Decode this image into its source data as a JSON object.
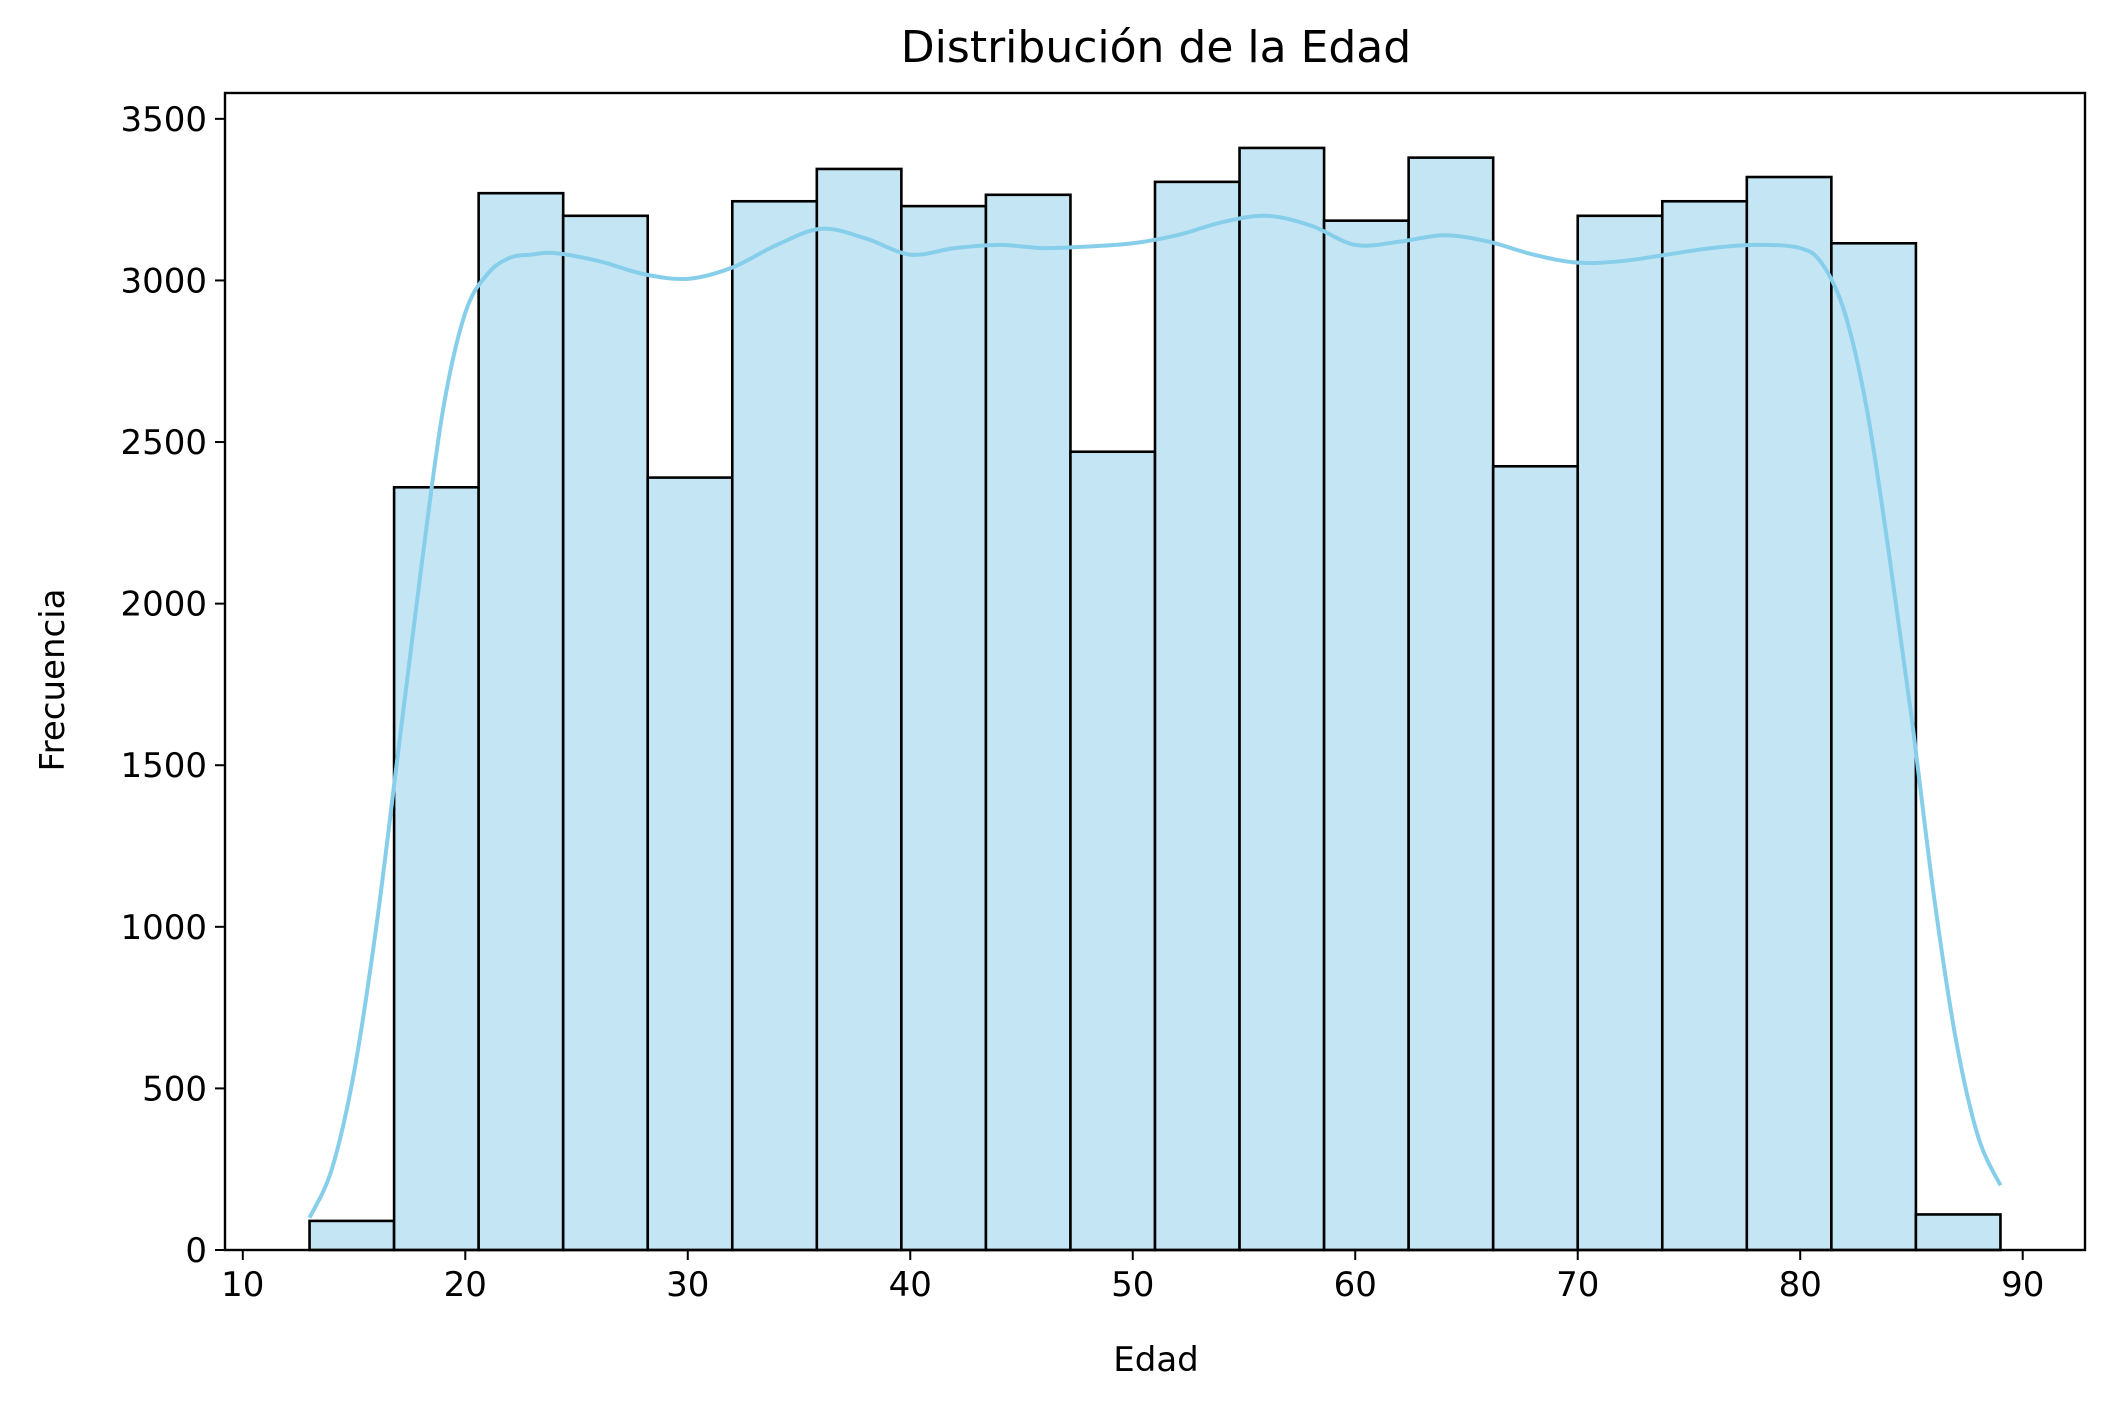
{
  "chart_data": {
    "type": "bar",
    "title": "Distribución de la Edad",
    "xlabel": "Edad",
    "ylabel": "Frecuencia",
    "xlim": [
      9.2,
      92.8
    ],
    "ylim": [
      0,
      3580
    ],
    "grid": false,
    "colors": {
      "bar_fill": "#c4e6f4",
      "bar_edge": "#000000",
      "kde_line": "#87ceeb"
    },
    "bins": [
      {
        "x0": 13.0,
        "x1": 16.8,
        "count": 90
      },
      {
        "x0": 16.8,
        "x1": 20.6,
        "count": 2360
      },
      {
        "x0": 20.6,
        "x1": 24.4,
        "count": 3270
      },
      {
        "x0": 24.4,
        "x1": 28.2,
        "count": 3200
      },
      {
        "x0": 28.2,
        "x1": 32.0,
        "count": 2390
      },
      {
        "x0": 32.0,
        "x1": 35.8,
        "count": 3245
      },
      {
        "x0": 35.8,
        "x1": 39.6,
        "count": 3345
      },
      {
        "x0": 39.6,
        "x1": 43.4,
        "count": 3230
      },
      {
        "x0": 43.4,
        "x1": 47.2,
        "count": 3265
      },
      {
        "x0": 47.2,
        "x1": 51.0,
        "count": 2470
      },
      {
        "x0": 51.0,
        "x1": 54.8,
        "count": 3305
      },
      {
        "x0": 54.8,
        "x1": 58.6,
        "count": 3410
      },
      {
        "x0": 58.6,
        "x1": 62.4,
        "count": 3185
      },
      {
        "x0": 62.4,
        "x1": 66.2,
        "count": 3380
      },
      {
        "x0": 66.2,
        "x1": 70.0,
        "count": 2425
      },
      {
        "x0": 70.0,
        "x1": 73.8,
        "count": 3200
      },
      {
        "x0": 73.8,
        "x1": 77.6,
        "count": 3245
      },
      {
        "x0": 77.6,
        "x1": 81.4,
        "count": 3320
      },
      {
        "x0": 81.4,
        "x1": 85.2,
        "count": 3115
      },
      {
        "x0": 85.2,
        "x1": 89.0,
        "count": 110
      }
    ],
    "kde": {
      "x": [
        13,
        14,
        15,
        16,
        17,
        18,
        19,
        20,
        21,
        22,
        23,
        24,
        26,
        28,
        30,
        32,
        34,
        36,
        38,
        40,
        42,
        44,
        46,
        48,
        50,
        52,
        54,
        56,
        58,
        60,
        62,
        64,
        66,
        68,
        70,
        72,
        74,
        76,
        78,
        80,
        81,
        82,
        83,
        84,
        85,
        86,
        87,
        88,
        89
      ],
      "y": [
        100,
        250,
        550,
        1000,
        1550,
        2100,
        2600,
        2900,
        3020,
        3070,
        3080,
        3085,
        3060,
        3020,
        3005,
        3040,
        3110,
        3160,
        3130,
        3080,
        3100,
        3110,
        3100,
        3105,
        3115,
        3140,
        3180,
        3200,
        3170,
        3110,
        3120,
        3140,
        3120,
        3080,
        3055,
        3060,
        3080,
        3100,
        3110,
        3100,
        3050,
        2900,
        2600,
        2150,
        1650,
        1100,
        650,
        350,
        200
      ]
    },
    "xticks": [
      10,
      20,
      30,
      40,
      50,
      60,
      70,
      80,
      90
    ],
    "yticks": [
      0,
      500,
      1000,
      1500,
      2000,
      2500,
      3000,
      3500
    ]
  }
}
